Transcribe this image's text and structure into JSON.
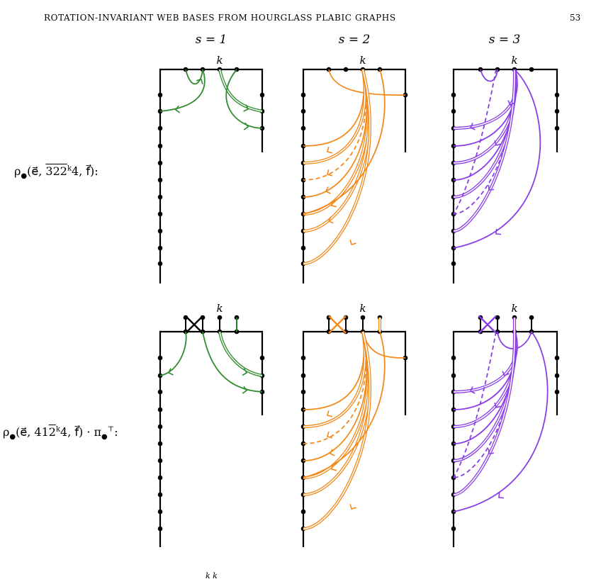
{
  "header": {
    "running_title": "ROTATION-INVARIANT WEB BASES FROM HOURGLASS PLABIC GRAPHS",
    "page_number": "53"
  },
  "column_labels": [
    "s = 1",
    "s = 2",
    "s = 3"
  ],
  "boundary_label": "k",
  "row_labels": {
    "row1": {
      "prefix": "ρ",
      "args": "(e⃗, ",
      "over": "322",
      "sup": "k",
      "tail": "4, f⃗):"
    },
    "row2": {
      "prefix": "ρ",
      "args": "(e⃗, 41",
      "over": "2",
      "sup": "k",
      "tail": "4, f⃗) · π",
      "sup2": "⊤",
      "end": ":"
    }
  },
  "colors": {
    "s1": "#2e8b2e",
    "s2": "#f28a1c",
    "s3": "#8a3ee6",
    "ink": "#000000"
  },
  "footer_fragment": "k          k"
}
